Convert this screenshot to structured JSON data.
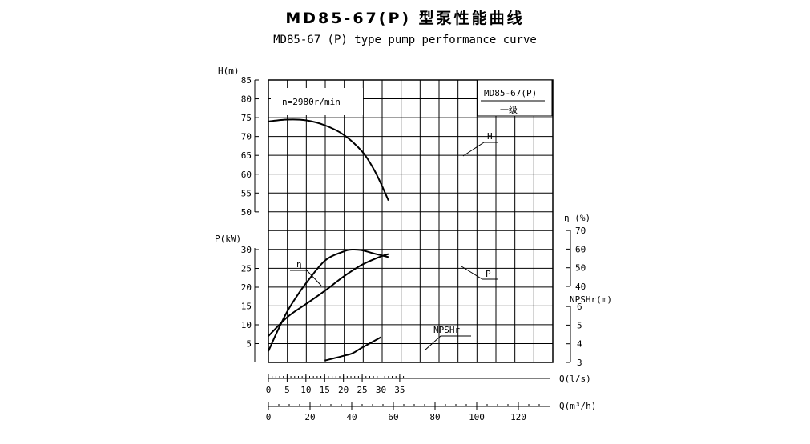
{
  "title": "MD85-67(P) 型泵性能曲线",
  "subtitle": "MD85-67 (P) type pump performance curve",
  "chart_data": {
    "type": "line",
    "speed_label": "n=2980r/min",
    "model_box": {
      "model": "MD85-67(P)",
      "stage": "一级"
    },
    "axes": {
      "H": {
        "label": "H(m)",
        "ylim": [
          50,
          85
        ],
        "ticks": [
          50,
          55,
          60,
          65,
          70,
          75,
          80,
          85
        ]
      },
      "P": {
        "label": "P(kW)",
        "ylim": [
          0,
          30
        ],
        "ticks": [
          5,
          10,
          15,
          20,
          25,
          30
        ]
      },
      "eta": {
        "label": "η (%)",
        "ylim": [
          40,
          70
        ],
        "ticks": [
          40,
          50,
          60,
          70
        ]
      },
      "NPSHr": {
        "label": "NPSHr(m)",
        "ylim": [
          3,
          6
        ],
        "ticks": [
          3,
          4,
          5,
          6
        ]
      },
      "Q_ls": {
        "label": "Q(l/s)",
        "xlim": [
          0,
          36
        ],
        "ticks": [
          0,
          5,
          10,
          15,
          20,
          25,
          30,
          35
        ]
      },
      "Q_m3h": {
        "label": "Q(m³/h)",
        "ticks": [
          0,
          20,
          40,
          60,
          80,
          100,
          120
        ]
      }
    },
    "series": [
      {
        "name": "H",
        "axis": "H",
        "x": [
          0,
          5,
          10,
          15,
          20,
          25,
          28,
          30,
          32
        ],
        "y": [
          74,
          74.5,
          74.3,
          73,
          70.5,
          66,
          61.5,
          57.5,
          53
        ]
      },
      {
        "name": "η",
        "axis": "eta",
        "x": [
          0,
          2.5,
          5,
          7.5,
          10,
          15,
          20,
          22.5,
          25,
          28,
          30,
          32
        ],
        "y": [
          3,
          8.5,
          13.5,
          17.5,
          21,
          27,
          29.5,
          30,
          29.8,
          29,
          28.5,
          28
        ]
      },
      {
        "name": "P",
        "axis": "P",
        "x": [
          0,
          5,
          10,
          15,
          20,
          25,
          30,
          32
        ],
        "y": [
          7,
          12,
          15.5,
          19,
          22.8,
          26,
          28.2,
          28.8
        ]
      },
      {
        "name": "NPSHr",
        "axis": "NPSHr",
        "x": [
          15,
          20,
          22.5,
          25,
          30
        ],
        "y": [
          3.1,
          3.35,
          3.5,
          3.8,
          4.35
        ]
      }
    ],
    "grid": true
  }
}
